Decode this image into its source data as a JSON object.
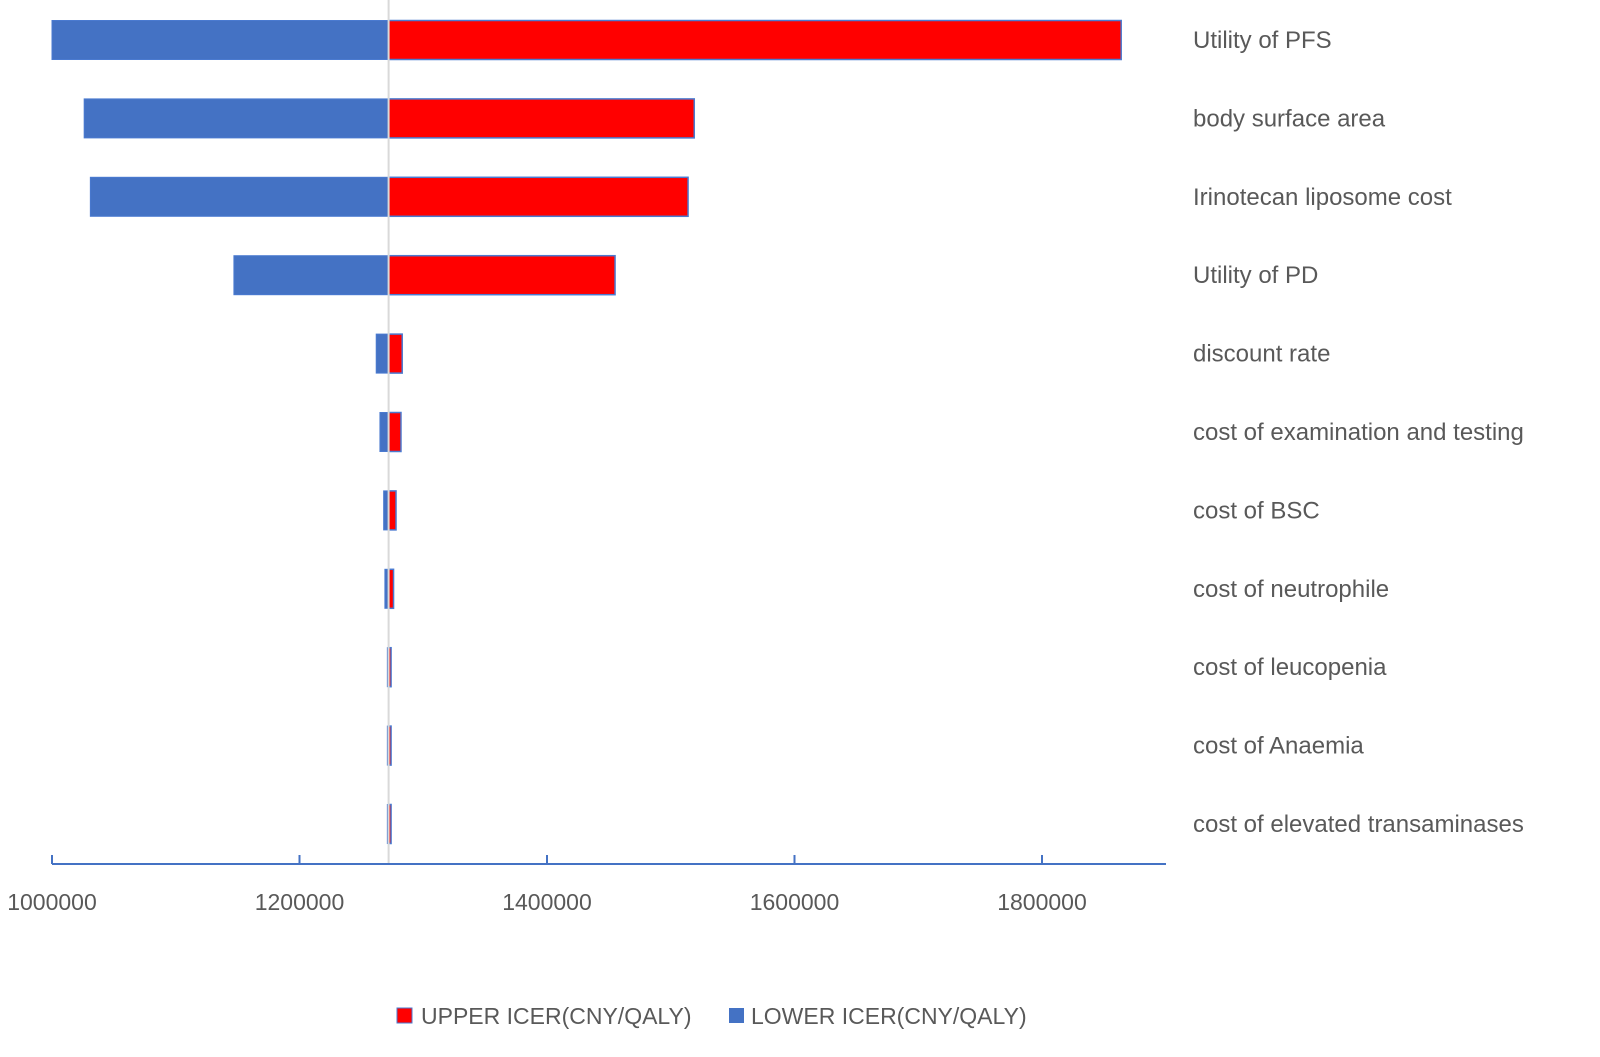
{
  "chart_data": {
    "type": "bar",
    "orientation": "horizontal",
    "subtype": "tornado",
    "baseline": 1272000,
    "xlim": [
      1000000,
      1900000
    ],
    "x_ticks": [
      1000000,
      1200000,
      1400000,
      1600000,
      1800000
    ],
    "x_tick_labels": [
      "1000000",
      "1200000",
      "1400000",
      "1600000",
      "1800000"
    ],
    "grid": false,
    "legend_position": "bottom",
    "categories": [
      "Utility of PFS",
      "body surface area",
      "Irinotecan  liposome cost",
      "Utility of PD",
      "discount rate",
      "cost of  examination and testing",
      "cost of  BSC",
      "cost of neutrophile",
      "cost of leucopenia",
      "cost of Anaemia",
      "cost of elevated transaminases"
    ],
    "series": [
      {
        "name": "UPPER ICER(CNY/QALY)",
        "color": "#ff0000",
        "values": [
          1864000,
          1519000,
          1514000,
          1455000,
          1283000,
          1282000,
          1278000,
          1276000,
          1274000,
          1274000,
          1274000
        ]
      },
      {
        "name": "LOWER ICER(CNY/QALY)",
        "color": "#4472c4",
        "values": [
          1000000,
          1026000,
          1031000,
          1147000,
          1262000,
          1265000,
          1268000,
          1269000,
          1271000,
          1271000,
          1271000
        ]
      }
    ]
  }
}
